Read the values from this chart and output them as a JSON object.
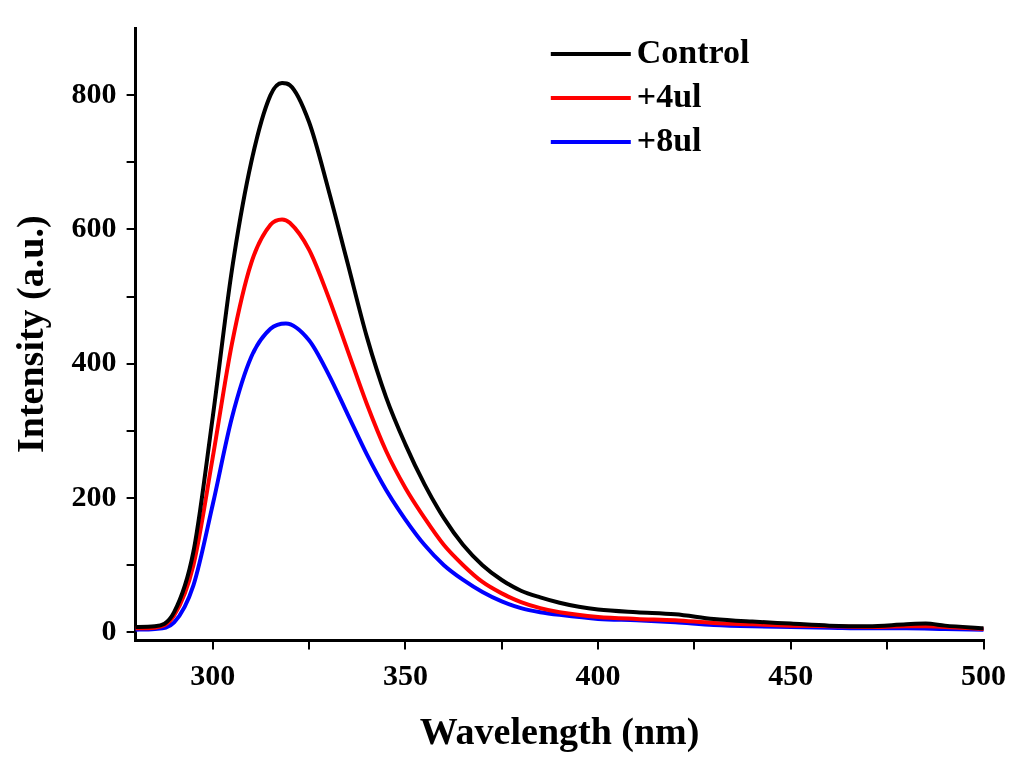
{
  "chart_data": {
    "type": "line",
    "xlabel": "Wavelength (nm)",
    "ylabel": "Intensity (a.u.)",
    "xlim": [
      280,
      500
    ],
    "xticks": [
      300,
      {
        "value": 325,
        "label": null
      },
      350,
      {
        "value": 375,
        "label": null
      },
      400,
      {
        "value": 425,
        "label": null
      },
      450,
      {
        "value": 475,
        "label": null
      },
      500
    ],
    "ylim": [
      -12,
      900
    ],
    "yticks": [
      0,
      {
        "value": 100,
        "label": null
      },
      200,
      {
        "value": 300,
        "label": null
      },
      400,
      {
        "value": 500,
        "label": null
      },
      600,
      {
        "value": 700,
        "label": null
      },
      800
    ],
    "grid": false,
    "legend": "top right",
    "marker": "none",
    "line_style": "solid",
    "series": [
      {
        "name": "Control",
        "color": "#000000",
        "x": [
          280,
          285,
          290,
          295,
          300,
          305,
          310,
          315,
          318,
          320,
          325,
          330,
          335,
          340,
          345,
          350,
          355,
          360,
          365,
          370,
          375,
          380,
          385,
          390,
          395,
          400,
          410,
          420,
          430,
          440,
          450,
          460,
          470,
          480,
          485,
          490,
          500
        ],
        "values": [
          8,
          9,
          30,
          120,
          320,
          540,
          700,
          800,
          818,
          815,
          760,
          660,
          550,
          440,
          350,
          280,
          220,
          170,
          130,
          100,
          78,
          62,
          52,
          44,
          38,
          34,
          30,
          27,
          20,
          16,
          13,
          10,
          9,
          12,
          13,
          10,
          6
        ]
      },
      {
        "name": "+4ul",
        "color": "#ff0000",
        "x": [
          280,
          285,
          290,
          295,
          300,
          305,
          310,
          315,
          318,
          320,
          325,
          330,
          335,
          340,
          345,
          350,
          355,
          360,
          365,
          370,
          375,
          380,
          385,
          390,
          400,
          410,
          420,
          430,
          440,
          450,
          460,
          470,
          480,
          485,
          490,
          500
        ],
        "values": [
          6,
          7,
          25,
          100,
          260,
          430,
          550,
          607,
          615,
          610,
          570,
          500,
          420,
          340,
          270,
          215,
          170,
          130,
          100,
          75,
          58,
          45,
          36,
          30,
          23,
          20,
          18,
          14,
          12,
          10,
          9,
          8,
          9,
          9,
          8,
          5
        ]
      },
      {
        "name": "+8ul",
        "color": "#0000ff",
        "x": [
          280,
          285,
          290,
          295,
          300,
          305,
          310,
          315,
          319,
          325,
          330,
          335,
          340,
          345,
          350,
          355,
          360,
          365,
          370,
          375,
          380,
          385,
          390,
          400,
          410,
          420,
          430,
          440,
          450,
          460,
          470,
          480,
          490,
          500
        ],
        "values": [
          4,
          5,
          15,
          70,
          190,
          320,
          410,
          452,
          460,
          435,
          385,
          325,
          265,
          212,
          168,
          130,
          100,
          78,
          60,
          46,
          36,
          30,
          26,
          20,
          18,
          15,
          11,
          9,
          8,
          7,
          6,
          6,
          5,
          4
        ]
      }
    ]
  }
}
